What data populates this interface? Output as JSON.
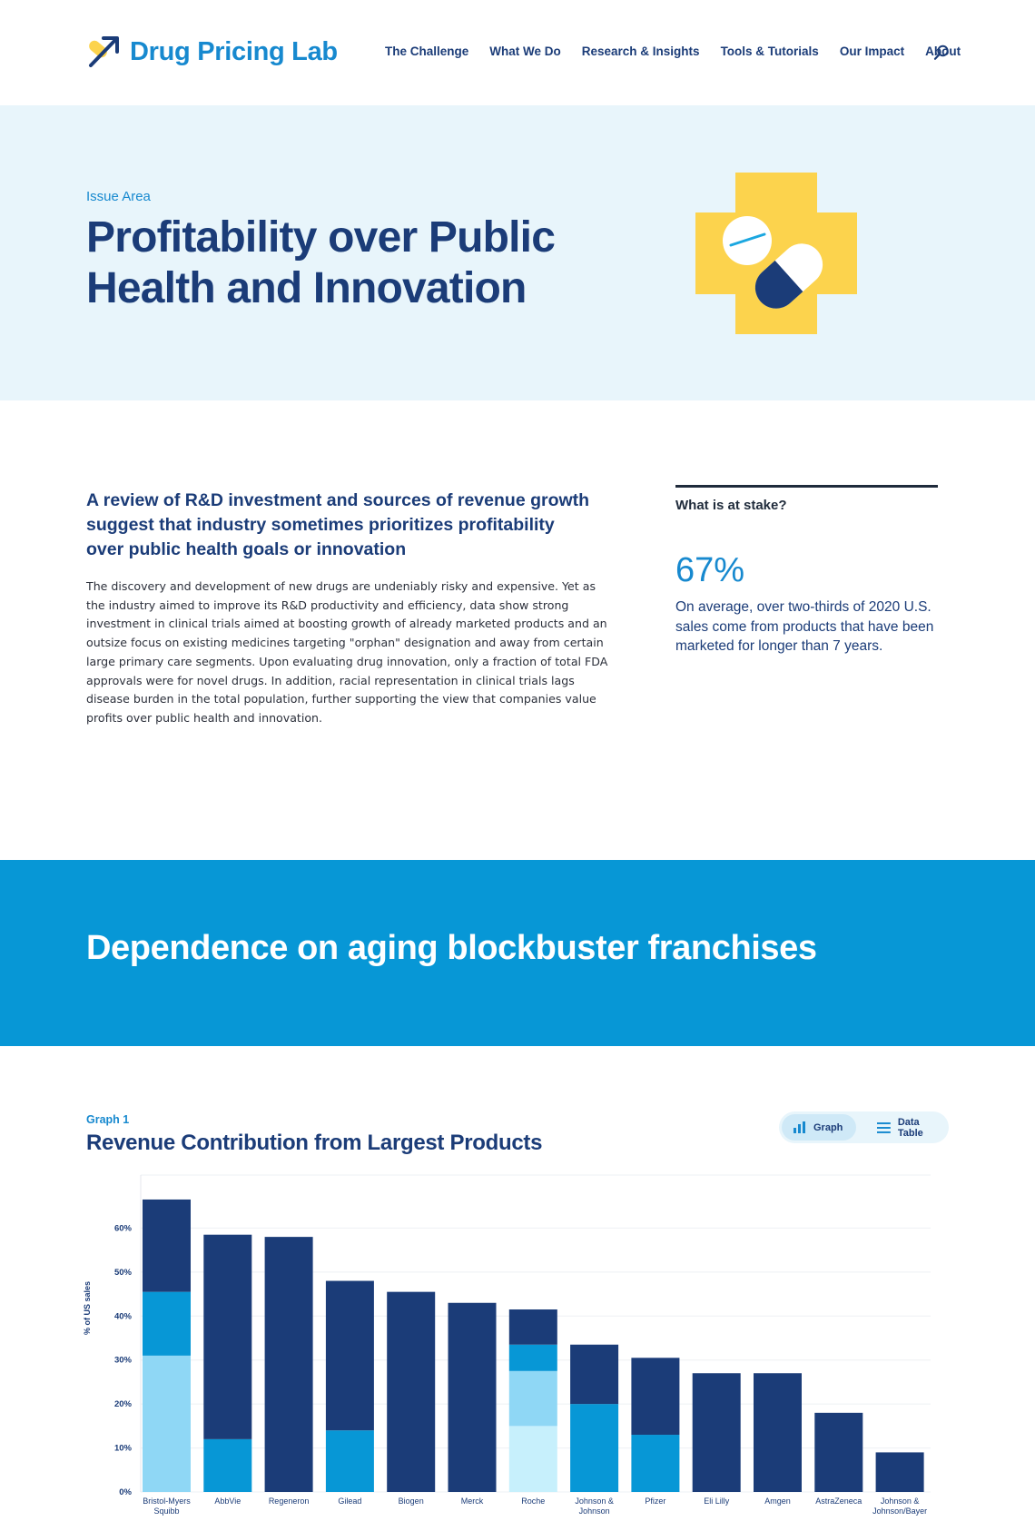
{
  "brand": {
    "name": "Drug Pricing Lab"
  },
  "nav": {
    "items": [
      "The Challenge",
      "What We Do",
      "Research & Insights",
      "Tools & Tutorials",
      "Our Impact",
      "About"
    ],
    "search_icon": "search-icon"
  },
  "hero": {
    "eyebrow": "Issue Area",
    "title": "Profitability over Public Health and Innovation",
    "illustration": "pill-cross-illustration"
  },
  "intro": {
    "lead": "A review of R&D investment and sources of revenue growth suggest that industry sometimes prioritizes profitability over public health goals or innovation",
    "body": "The discovery and development of new drugs are undeniably risky and expensive. Yet as the industry aimed to improve its R&D productivity and efficiency, data show strong investment in clinical trials aimed at boosting growth of already marketed products and an outsize focus on existing medicines targeting \"orphan\" designation and away from certain large primary care segments. Upon evaluating drug innovation, only a fraction of total FDA approvals were for novel drugs. In addition, racial representation in clinical trials lags disease burden in the total population, further supporting the view that companies value profits over public health and innovation."
  },
  "stake": {
    "label": "What is at stake?",
    "value": "67%",
    "description": "On average, over two-thirds of 2020 U.S. sales come from products that have been marketed for longer than 7 years."
  },
  "band": {
    "title": "Dependence on aging blockbuster franchises"
  },
  "graph": {
    "eyebrow": "Graph 1",
    "title": "Revenue Contribution from Largest Products",
    "toggle": {
      "graph_label": "Graph",
      "table_label": "Data Table"
    }
  },
  "colors": {
    "brand_blue": "#1789cf",
    "navy": "#1b3c78",
    "hero_bg": "#e8f5fb",
    "band_bg": "#0797d6",
    "logo_yellow": "#fcd34d"
  },
  "chart_data": {
    "type": "bar",
    "stacked": true,
    "title": "Revenue Contribution from Largest Products",
    "ylabel": "% of US sales",
    "ylim": [
      0,
      70
    ],
    "yticks": [
      0,
      10,
      20,
      30,
      40,
      50,
      60
    ],
    "ytick_labels": [
      "0%",
      "10%",
      "20%",
      "30%",
      "40%",
      "50%",
      "60%"
    ],
    "grid": true,
    "categories": [
      "Bristol-Myers Squibb",
      "AbbVie",
      "Regeneron",
      "Gilead",
      "Biogen",
      "Merck",
      "Roche",
      "Johnson & Johnson",
      "Pfizer",
      "Eli Lilly",
      "Amgen",
      "AstraZeneca",
      "Johnson & Johnson/Bayer"
    ],
    "series": [
      {
        "color": "#c7f0fc",
        "values": [
          0,
          0,
          0,
          0,
          0,
          0,
          15,
          0,
          0,
          0,
          0,
          0,
          0
        ]
      },
      {
        "color": "#8fd7f5",
        "values": [
          31,
          0,
          0,
          0,
          0,
          0,
          12.5,
          0,
          0,
          0,
          0,
          0,
          0
        ]
      },
      {
        "color": "#0797d6",
        "values": [
          14.5,
          12,
          0,
          14,
          0,
          0,
          6,
          20,
          13,
          0,
          0,
          0,
          0
        ]
      },
      {
        "color": "#1b3c78",
        "values": [
          21,
          46.5,
          58,
          34,
          45.5,
          43,
          8,
          13.5,
          17.5,
          27,
          27,
          18,
          9
        ]
      }
    ]
  }
}
